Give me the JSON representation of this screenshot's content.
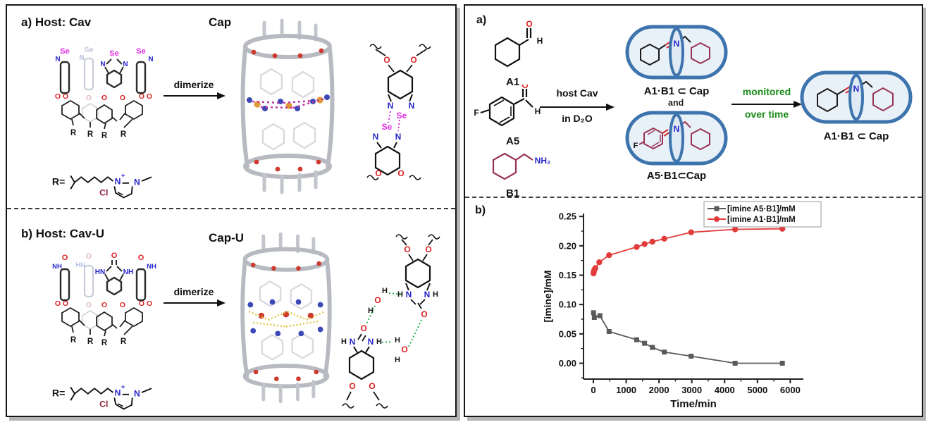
{
  "colors": {
    "selenium": "#e22de2",
    "nitrogen": "#2525cc",
    "oxygen": "#dd2020",
    "chloride": "#8b1f35",
    "maroon_ring": "#993355",
    "capsule_blue": "#3d74ad",
    "capsule_fill": "#e9f1f8",
    "green_text": "#178a17",
    "chart_red": "#e23b3b",
    "chart_gray": "#5a5a5a"
  },
  "atoms": {
    "se": "Se",
    "n": "N",
    "o": "O",
    "r": "R",
    "h": "H",
    "f": "F",
    "cl": "Cl",
    "nh2": "NH₂",
    "hn": "HN",
    "nh": "NH",
    "plus": "+",
    "r_eq": "R="
  },
  "left_panel": {
    "section_a": {
      "heading": "a) Host: Cav",
      "product_label": "Cap",
      "arrow_label": "dimerize"
    },
    "section_b": {
      "heading": "b) Host: Cav-U",
      "product_label": "Cap-U",
      "arrow_label": "dimerize"
    }
  },
  "right_panel": {
    "section_a": {
      "label": "a)",
      "reactant1": "A1",
      "reactant2": "A5",
      "reactant3": "B1",
      "arrow_text_top": "host Cav",
      "arrow_text_bottom": "in D₂O",
      "capsule1_label": "A1·B1 ⊂ Cap",
      "and_label": "and",
      "capsule2_label": "A5·B1⊂Cap",
      "monitor_line1": "monitored",
      "monitor_line2": "over time",
      "capsule3_label": "A1·B1 ⊂ Cap"
    },
    "section_b": {
      "label": "b)"
    }
  },
  "chart_data": {
    "type": "line",
    "xlabel": "Time/min",
    "ylabel": "[imine]/mM",
    "xlim": [
      -300,
      6400
    ],
    "ylim": [
      -0.027,
      0.255
    ],
    "xticks": [
      0,
      1000,
      2000,
      3000,
      4000,
      5000,
      6000
    ],
    "xtick_labels": [
      "0",
      "1000",
      "2000",
      "3000",
      "4000",
      "5000",
      "6000"
    ],
    "yticks": [
      0,
      0.05,
      0.1,
      0.15,
      0.2,
      0.25
    ],
    "ytick_labels": [
      "0.00",
      "0.05",
      "0.10",
      "0.15",
      "0.20",
      "0.25"
    ],
    "grid": false,
    "legend_position": "top-right",
    "series": [
      {
        "name": "[imine A5·B1]/mM",
        "color": "#5a5a5a",
        "marker": "square",
        "x": [
          5,
          30,
          200,
          480,
          1320,
          1560,
          1800,
          2160,
          2980,
          4320,
          5760
        ],
        "y": [
          0.086,
          0.078,
          0.081,
          0.054,
          0.04,
          0.034,
          0.027,
          0.019,
          0.012,
          0.0,
          0.0
        ]
      },
      {
        "name": "[imine A1·B1]/mM",
        "color": "#e23b3b",
        "marker": "circle",
        "x": [
          5,
          15,
          30,
          60,
          180,
          480,
          1320,
          1560,
          1800,
          2160,
          2980,
          4320,
          5760
        ],
        "y": [
          0.153,
          0.156,
          0.159,
          0.162,
          0.172,
          0.184,
          0.198,
          0.203,
          0.207,
          0.212,
          0.223,
          0.228,
          0.229
        ]
      }
    ]
  }
}
